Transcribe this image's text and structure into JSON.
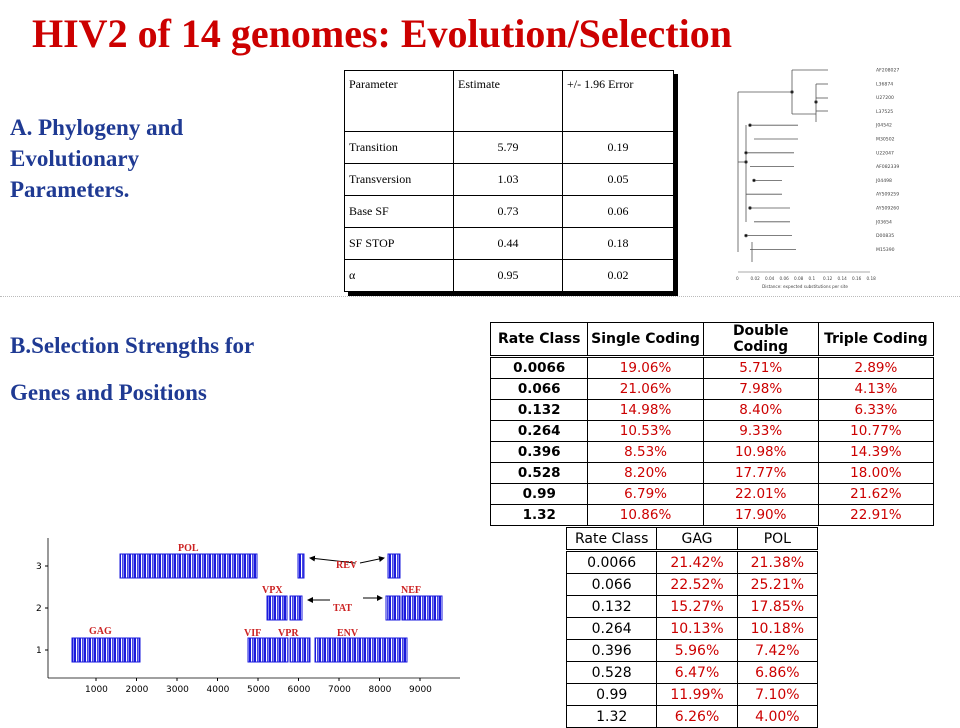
{
  "title": "HIV2  of 14 genomes: Evolution/Selection",
  "section_a": {
    "line1": "A. Phylogeny and",
    "line2": "Evolutionary",
    "line3": "Parameters."
  },
  "section_b": {
    "line1": "B.Selection Strengths for",
    "line2": "Genes and Positions"
  },
  "param_table": {
    "headers": [
      "Parameter",
      "Estimate",
      "+/- 1.96 Error"
    ],
    "rows": [
      [
        "Transition",
        "5.79",
        "0.19"
      ],
      [
        "Transversion",
        "1.03",
        "0.05"
      ],
      [
        "Base SF",
        "0.73",
        "0.06"
      ],
      [
        "SF STOP",
        "0.44",
        "0.18"
      ],
      [
        "α",
        "0.95",
        "0.02"
      ]
    ]
  },
  "tree": {
    "taxa": [
      "AF208027",
      "L36874",
      "U27200",
      "L37525",
      "J04542",
      "M30502",
      "U22047",
      "AF082339",
      "J04498",
      "AY509259",
      "AY509260",
      "J03654",
      "D00835",
      "M15390"
    ],
    "axis_ticks": [
      "0",
      "0.02",
      "0.04",
      "0.06",
      "0.08",
      "0.1",
      "0.12",
      "0.14",
      "0.16",
      "0.18"
    ],
    "axis_label": "Distance: expected substitutions per site"
  },
  "rate_table_1": {
    "headers": [
      "Rate Class",
      "Single Coding",
      "Double Coding",
      "Triple Coding"
    ],
    "rows": [
      [
        "0.0066",
        "19.06%",
        "5.71%",
        "2.89%"
      ],
      [
        "0.066",
        "21.06%",
        "7.98%",
        "4.13%"
      ],
      [
        "0.132",
        "14.98%",
        "8.40%",
        "6.33%"
      ],
      [
        "0.264",
        "10.53%",
        "9.33%",
        "10.77%"
      ],
      [
        "0.396",
        "8.53%",
        "10.98%",
        "14.39%"
      ],
      [
        "0.528",
        "8.20%",
        "17.77%",
        "18.00%"
      ],
      [
        "0.99",
        "6.79%",
        "22.01%",
        "21.62%"
      ],
      [
        "1.32",
        "10.86%",
        "17.90%",
        "22.91%"
      ]
    ]
  },
  "rate_table_2": {
    "headers": [
      "Rate Class",
      "GAG",
      "POL"
    ],
    "rows": [
      [
        "0.0066",
        "21.42%",
        "21.38%"
      ],
      [
        "0.066",
        "22.52%",
        "25.21%"
      ],
      [
        "0.132",
        "15.27%",
        "17.85%"
      ],
      [
        "0.264",
        "10.13%",
        "10.18%"
      ],
      [
        "0.396",
        "5.96%",
        "7.42%"
      ],
      [
        "0.528",
        "6.47%",
        "6.86%"
      ],
      [
        "0.99",
        "11.99%",
        "7.10%"
      ],
      [
        "1.32",
        "6.26%",
        "4.00%"
      ]
    ]
  },
  "genome_plot": {
    "x_ticks": [
      "1000",
      "2000",
      "3000",
      "4000",
      "5000",
      "6000",
      "7000",
      "8000",
      "9000"
    ],
    "y_ticks": [
      "3",
      "2",
      "1"
    ],
    "genes": {
      "pol": "POL",
      "rev": "REV",
      "vpx": "VPX",
      "nef": "NEF",
      "tat": "TAT",
      "gag": "GAG",
      "vif": "VIF",
      "vpr": "VPR",
      "env": "ENV"
    }
  }
}
